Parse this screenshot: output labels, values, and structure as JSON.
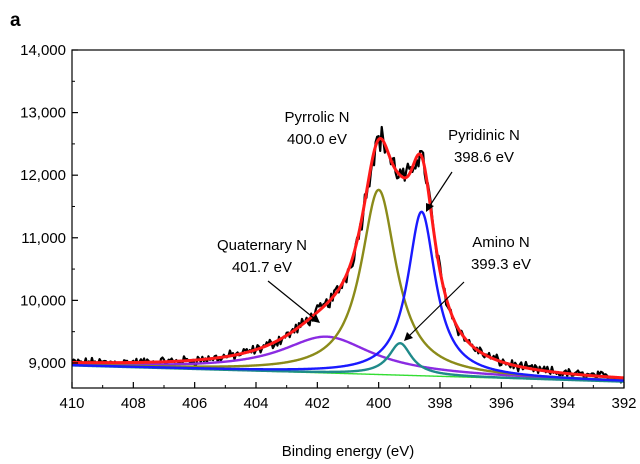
{
  "chart_data": {
    "type": "line",
    "panel_label": "a",
    "xlabel": "Binding energy (eV)",
    "ylabel": "",
    "xlim": [
      410,
      392
    ],
    "ylim": [
      8600,
      14000
    ],
    "x_reversed": true,
    "x_ticks": [
      410,
      408,
      406,
      404,
      402,
      400,
      398,
      396,
      394,
      392
    ],
    "x_tick_labels": [
      "410",
      "408",
      "406",
      "404",
      "402",
      "400",
      "398",
      "396",
      "394",
      "392"
    ],
    "y_ticks": [
      9000,
      10000,
      11000,
      12000,
      13000,
      14000
    ],
    "y_tick_labels": [
      "9,000",
      "10,000",
      "11,000",
      "12,000",
      "13,000",
      "14,000"
    ],
    "grid": false,
    "legend": "none",
    "series": [
      {
        "key": "baseline",
        "color": "#33dd33"
      },
      {
        "key": "quaternary",
        "color": "#8a2be2"
      },
      {
        "key": "amino",
        "color": "#1f8a8a"
      },
      {
        "key": "pyrrolic",
        "color": "#8b8b1a"
      },
      {
        "key": "pyridinic",
        "color": "#1a1aff"
      },
      {
        "key": "raw",
        "color": "#000000"
      },
      {
        "key": "envelope",
        "color": "#ff1a1a"
      }
    ],
    "peaks": [
      {
        "key": "quaternary",
        "center": 401.7,
        "height": 580,
        "fwhm": 3.6
      },
      {
        "key": "amino",
        "center": 399.3,
        "height": 510,
        "fwhm": 0.9
      },
      {
        "key": "pyrrolic",
        "center": 400.0,
        "height": 2950,
        "fwhm": 1.4
      },
      {
        "key": "pyridinic",
        "center": 398.6,
        "height": 2620,
        "fwhm": 1.1
      }
    ],
    "baseline": {
      "left_x": 410,
      "left_y": 8960,
      "right_x": 392,
      "right_y": 8700
    },
    "annotations": [
      {
        "name": "pyrrolic",
        "lines": [
          "Pyrrolic N",
          "400.0 eV"
        ]
      },
      {
        "name": "pyridinic",
        "lines": [
          "Pyridinic N",
          "398.6 eV"
        ]
      },
      {
        "name": "quaternary",
        "lines": [
          "Quaternary N",
          "401.7 eV"
        ]
      },
      {
        "name": "amino",
        "lines": [
          "Amino N",
          "399.3 eV"
        ]
      }
    ]
  }
}
